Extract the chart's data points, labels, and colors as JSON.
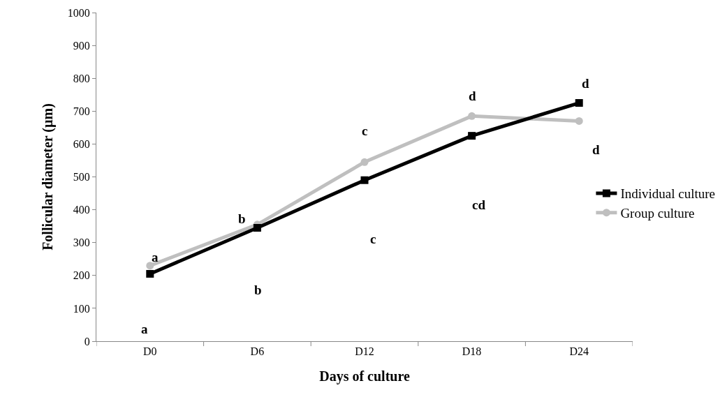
{
  "chart_data": {
    "type": "line",
    "xlabel": "Days of culture",
    "ylabel": "Follicular diameter (µm)",
    "categories": [
      "D0",
      "D6",
      "D12",
      "D18",
      "D24"
    ],
    "series": [
      {
        "name": "Individual culture",
        "color": "#000000",
        "marker": "square",
        "values": [
          205,
          345,
          490,
          625,
          725
        ]
      },
      {
        "name": "Group culture",
        "color": "#bfbfbf",
        "marker": "circle",
        "values": [
          230,
          355,
          545,
          685,
          670
        ]
      }
    ],
    "ylim": [
      0,
      1000
    ],
    "yticks": [
      0,
      100,
      200,
      300,
      400,
      500,
      600,
      700,
      800,
      900,
      1000
    ],
    "grid": false,
    "legend": "right",
    "line_style": "solid",
    "annotations": [
      "a",
      "b",
      "c",
      "d",
      "d",
      "a",
      "b",
      "c",
      "cd",
      "d"
    ]
  }
}
